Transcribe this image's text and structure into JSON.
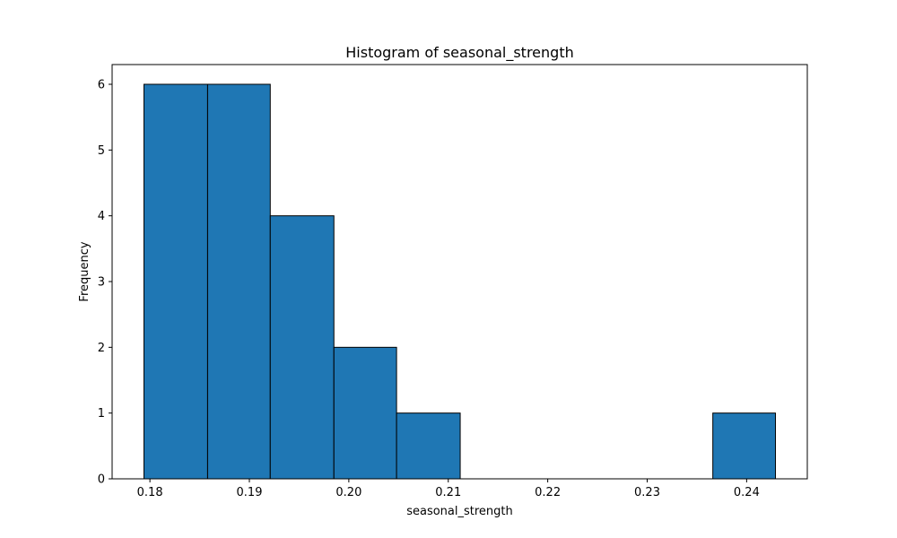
{
  "chart_data": {
    "type": "bar",
    "title": "Histogram of seasonal_strength",
    "xlabel": "seasonal_strength",
    "ylabel": "Frequency",
    "bin_edges": [
      0.1794,
      0.1858,
      0.1921,
      0.1985,
      0.2048,
      0.2112,
      0.2175,
      0.2239,
      0.2302,
      0.2366,
      0.2429
    ],
    "values": [
      6,
      6,
      4,
      2,
      1,
      0,
      0,
      0,
      0,
      1
    ],
    "xlim": [
      0.1762,
      0.2461
    ],
    "ylim": [
      0,
      6.3
    ],
    "xticks": [
      0.18,
      0.19,
      0.2,
      0.21,
      0.22,
      0.23,
      0.24
    ],
    "xtick_labels": [
      "0.18",
      "0.19",
      "0.20",
      "0.21",
      "0.22",
      "0.23",
      "0.24"
    ],
    "yticks": [
      0,
      1,
      2,
      3,
      4,
      5,
      6
    ],
    "ytick_labels": [
      "0",
      "1",
      "2",
      "3",
      "4",
      "5",
      "6"
    ],
    "grid": false,
    "legend": "none",
    "bar_color": "#1f77b4",
    "edge_color": "#000000"
  }
}
